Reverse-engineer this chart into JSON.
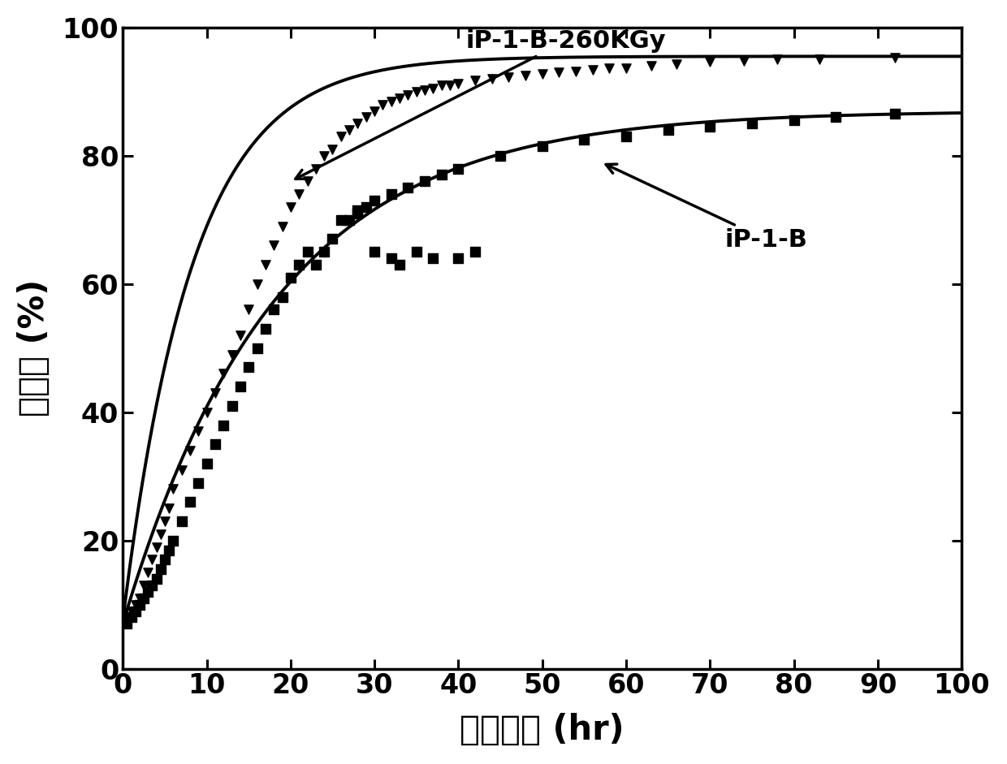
{
  "title": "",
  "xlabel": "转变时间 (hr)",
  "ylabel": "转化率 (%)",
  "xlim": [
    0,
    100
  ],
  "ylim": [
    0,
    100
  ],
  "xticks": [
    0,
    10,
    20,
    30,
    40,
    50,
    60,
    70,
    80,
    90,
    100
  ],
  "yticks": [
    0,
    20,
    40,
    60,
    80,
    100
  ],
  "label_260": "iP-1-B-260KGy",
  "label_ip1b": "iP-1-B",
  "curve_260_params": [
    88.0,
    0.12,
    7.5
  ],
  "curve_ip1b_params": [
    80.0,
    0.055,
    7.0
  ],
  "scatter_260_x": [
    0.5,
    1,
    1.5,
    2,
    2.5,
    3,
    3.5,
    4,
    4.5,
    5,
    5.5,
    6,
    7,
    8,
    9,
    10,
    11,
    12,
    13,
    14,
    15,
    16,
    17,
    18,
    19,
    20,
    21,
    22,
    23,
    24,
    25,
    26,
    27,
    28,
    29,
    30,
    31,
    32,
    33,
    34,
    35,
    36,
    37,
    38,
    39,
    40,
    42,
    44,
    46,
    48,
    50,
    52,
    54,
    56,
    58,
    60,
    63,
    66,
    70,
    74,
    78,
    83,
    92
  ],
  "scatter_260_y": [
    8,
    9,
    10,
    11,
    13,
    15,
    17,
    19,
    21,
    23,
    25,
    28,
    31,
    34,
    37,
    40,
    43,
    46,
    49,
    52,
    56,
    60,
    63,
    66,
    69,
    72,
    74,
    76,
    78,
    80,
    81,
    83,
    84,
    85,
    86,
    87,
    88,
    88.5,
    89,
    89.5,
    90,
    90.2,
    90.5,
    91,
    91,
    91.2,
    91.8,
    92,
    92.2,
    92.5,
    92.8,
    93,
    93.2,
    93.4,
    93.6,
    93.7,
    94,
    94.3,
    94.6,
    94.8,
    95,
    95.1,
    95.3
  ],
  "scatter_ip1b_x": [
    0.5,
    1,
    1.5,
    2,
    2.5,
    3,
    3.5,
    4,
    4.5,
    5,
    5.5,
    6,
    7,
    8,
    9,
    10,
    11,
    12,
    13,
    14,
    15,
    16,
    17,
    18,
    19,
    20,
    21,
    22,
    26,
    28,
    29,
    30,
    32,
    34,
    36,
    38,
    40,
    45,
    50,
    55,
    60,
    65,
    70,
    75,
    80,
    85,
    92
  ],
  "scatter_ip1b_y": [
    7,
    8,
    9,
    10,
    11,
    12,
    13,
    14,
    15.5,
    17,
    18.5,
    20,
    23,
    26,
    29,
    32,
    35,
    38,
    41,
    44,
    47,
    50,
    53,
    56,
    58,
    61,
    63,
    65,
    70,
    71.5,
    72,
    73,
    74,
    75,
    76,
    77,
    78,
    80,
    81.5,
    82.5,
    83,
    84,
    84.5,
    85,
    85.5,
    86,
    86.5
  ],
  "extra_scatter_ip1b_x": [
    23,
    24,
    25,
    27,
    28,
    30,
    32,
    33,
    35,
    37,
    40,
    42
  ],
  "extra_scatter_ip1b_y": [
    63,
    65,
    67,
    70,
    71,
    65,
    64,
    63,
    65,
    64,
    64,
    65
  ],
  "color": "#000000",
  "bg_color": "#ffffff"
}
